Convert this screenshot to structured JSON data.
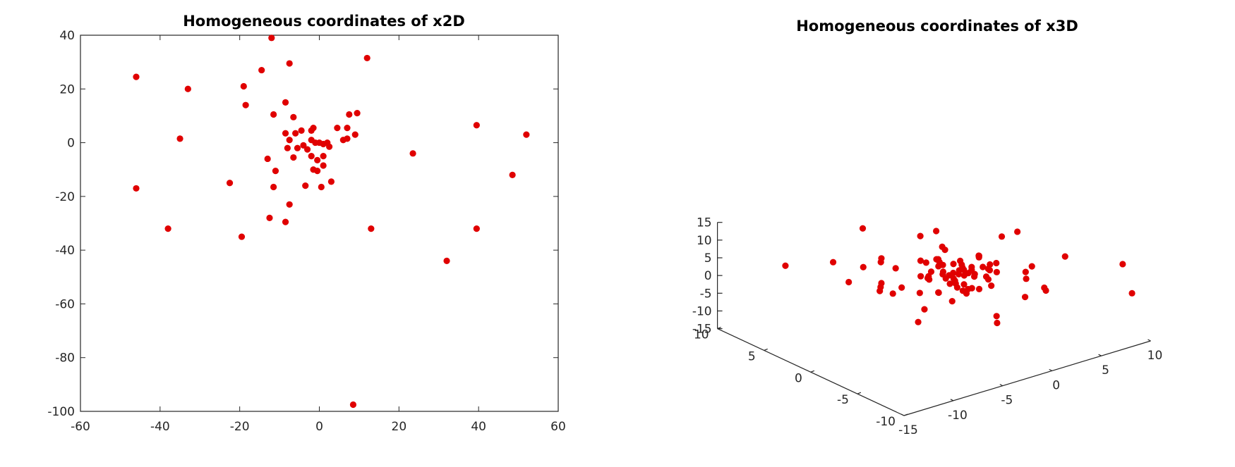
{
  "colors": {
    "marker": "#e00000",
    "axis": "#262626",
    "background": "#ffffff"
  },
  "chart_data": [
    {
      "type": "scatter",
      "title": "Homogeneous coordinates of x2D",
      "xlim": [
        -60,
        60
      ],
      "ylim": [
        -100,
        40
      ],
      "xticks": [
        -60,
        -40,
        -20,
        0,
        20,
        40,
        60
      ],
      "yticks": [
        -100,
        -80,
        -60,
        -40,
        -20,
        0,
        20,
        40
      ],
      "grid": false,
      "series": [
        {
          "marker_color": "#e00000",
          "points": [
            [
              -46,
              24.5
            ],
            [
              -33,
              20
            ],
            [
              -35,
              1.5
            ],
            [
              -46,
              -17
            ],
            [
              -38,
              -32
            ],
            [
              -12,
              39
            ],
            [
              -7.5,
              29.5
            ],
            [
              -14.5,
              27
            ],
            [
              -19,
              21
            ],
            [
              -18.5,
              14
            ],
            [
              -8.5,
              15
            ],
            [
              -11.5,
              10.5
            ],
            [
              -6.5,
              9.5
            ],
            [
              -8.5,
              3.5
            ],
            [
              -7.5,
              1
            ],
            [
              -8,
              -2
            ],
            [
              -6,
              3.5
            ],
            [
              -4.5,
              4.5
            ],
            [
              -2,
              4.5
            ],
            [
              -1.5,
              5.5
            ],
            [
              -4,
              -1
            ],
            [
              -2,
              1
            ],
            [
              -1,
              0
            ],
            [
              0,
              0
            ],
            [
              1,
              -0.5
            ],
            [
              2,
              0
            ],
            [
              2.5,
              -1.5
            ],
            [
              -3,
              -2.5
            ],
            [
              -5.5,
              -2
            ],
            [
              -6.5,
              -5.5
            ],
            [
              -2,
              -5
            ],
            [
              -0.5,
              -6.5
            ],
            [
              1,
              -5
            ],
            [
              1,
              -8.5
            ],
            [
              -1.5,
              -10
            ],
            [
              -0.5,
              -10.5
            ],
            [
              -3.5,
              -16
            ],
            [
              0.5,
              -16.5
            ],
            [
              3,
              -14.5
            ],
            [
              -11,
              -10.5
            ],
            [
              -13,
              -6
            ],
            [
              -11.5,
              -16.5
            ],
            [
              -22.5,
              -15
            ],
            [
              -7.5,
              -23
            ],
            [
              -12.5,
              -28
            ],
            [
              -8.5,
              -29.5
            ],
            [
              -19.5,
              -35
            ],
            [
              4.5,
              5.5
            ],
            [
              7,
              5.5
            ],
            [
              7.5,
              10.5
            ],
            [
              9.5,
              11
            ],
            [
              6,
              1
            ],
            [
              7,
              1.5
            ],
            [
              9,
              3
            ],
            [
              12,
              31.5
            ],
            [
              23.5,
              -4
            ],
            [
              13,
              -32
            ],
            [
              39.5,
              6.5
            ],
            [
              52,
              3
            ],
            [
              48.5,
              -12
            ],
            [
              39.5,
              -32
            ],
            [
              32,
              -44
            ],
            [
              8.5,
              -97.5
            ]
          ]
        }
      ]
    },
    {
      "type": "scatter",
      "title": "Homogeneous coordinates of x3D",
      "xlim": [
        -15,
        10
      ],
      "ylim": [
        -10,
        10
      ],
      "zlim": [
        -15,
        15
      ],
      "xticks": [
        -15,
        -10,
        -5,
        0,
        5,
        10
      ],
      "yticks": [
        -10,
        -5,
        0,
        5,
        10
      ],
      "zticks": [
        -15,
        -10,
        -5,
        0,
        5,
        10,
        15
      ],
      "grid": false,
      "series": [
        {
          "marker_color": "#e00000",
          "points": [
            [
              -3.5,
              -2,
              8
            ],
            [
              2,
              -2.5,
              12
            ],
            [
              -5,
              5,
              11
            ],
            [
              -2,
              2,
              10
            ],
            [
              0.5,
              -3.5,
              7
            ],
            [
              -6,
              2,
              6
            ],
            [
              5,
              -1,
              9
            ],
            [
              1.5,
              4,
              6
            ],
            [
              -8,
              5,
              4
            ],
            [
              7,
              -4,
              4
            ],
            [
              -4,
              6,
              -2
            ],
            [
              4,
              6,
              -3
            ],
            [
              -6,
              -2,
              -6
            ],
            [
              3,
              -6,
              1
            ],
            [
              -1,
              6,
              -12
            ],
            [
              2,
              -2,
              -13
            ],
            [
              -3,
              0.5,
              -8
            ],
            [
              1,
              -3,
              -9
            ],
            [
              6,
              -3,
              -6
            ],
            [
              -8,
              0,
              2
            ],
            [
              6,
              3,
              -6
            ],
            [
              10,
              -7,
              3
            ],
            [
              10,
              -8,
              -4
            ],
            [
              -10,
              8,
              1
            ],
            [
              -4.5,
              2,
              3
            ],
            [
              -4,
              -1,
              4
            ],
            [
              -5,
              6.5,
              -6
            ],
            [
              -2,
              -3.5,
              8
            ],
            [
              -1.5,
              -3,
              1
            ],
            [
              3,
              1,
              1
            ],
            [
              2,
              4.5,
              -3
            ],
            [
              -5,
              3,
              -2
            ],
            [
              -3.5,
              -3,
              -1
            ],
            [
              0.5,
              2,
              4
            ],
            [
              -3,
              -4,
              2
            ],
            [
              3,
              -4,
              3
            ],
            [
              -3,
              1,
              -4
            ],
            [
              3,
              0,
              -4
            ],
            [
              -1,
              1,
              3
            ],
            [
              0,
              -1,
              -3
            ],
            [
              4,
              -3,
              -1
            ],
            [
              -5,
              3,
              5
            ],
            [
              6,
              -1.5,
              -1
            ],
            [
              -6.5,
              1.5,
              0
            ],
            [
              -2,
              4,
              -7
            ],
            [
              1,
              2,
              -6
            ],
            [
              -3,
              -1,
              6
            ],
            [
              2,
              -5,
              -2
            ],
            [
              -1.5,
              2.5,
              2
            ],
            [
              1.5,
              -1,
              2
            ],
            [
              -1,
              -1.5,
              -2
            ],
            [
              1,
              1,
              -1
            ],
            [
              0,
              0,
              0
            ],
            [
              0.5,
              -0.5,
              0.5
            ],
            [
              -0.5,
              0.5,
              -0.5
            ],
            [
              0.8,
              0.3,
              0.2
            ],
            [
              -0.8,
              -0.3,
              -0.2
            ],
            [
              0.2,
              0.8,
              -0.8
            ],
            [
              -0.2,
              -0.8,
              0.8
            ],
            [
              1.2,
              -0.4,
              -1.2
            ],
            [
              -1.2,
              0.4,
              1.2
            ],
            [
              0.6,
              1.2,
              0.9
            ],
            [
              -0.6,
              -1.2,
              -0.9
            ],
            [
              1.5,
              0.2,
              -0.3
            ],
            [
              -1.5,
              -0.2,
              0.3
            ],
            [
              0.3,
              -1.4,
              1.5
            ],
            [
              -0.3,
              1.4,
              -1.5
            ],
            [
              1,
              0.9,
              1.8
            ],
            [
              -1,
              -0.9,
              -1.8
            ],
            [
              0.4,
              0.1,
              2.2
            ],
            [
              -0.4,
              -0.1,
              -2.2
            ],
            [
              2.2,
              -1,
              0.5
            ],
            [
              -2.2,
              1,
              -0.5
            ],
            [
              1.8,
              1.5,
              -1.5
            ],
            [
              -1.8,
              -1.5,
              1.5
            ],
            [
              0.9,
              -2,
              1
            ],
            [
              -0.9,
              2,
              -1
            ],
            [
              2.5,
              0.5,
              2.5
            ],
            [
              -2.5,
              -0.5,
              -2.5
            ],
            [
              1.6,
              -1.8,
              -2.4
            ],
            [
              -1.6,
              1.8,
              2.4
            ],
            [
              2.8,
              -0.2,
              -0.6
            ],
            [
              -2.8,
              0.2,
              0.6
            ],
            [
              0.1,
              2.3,
              1.3
            ],
            [
              -0.1,
              -2.3,
              -1.3
            ],
            [
              3.2,
              1.2,
              1
            ],
            [
              -3.2,
              -1.2,
              -1
            ],
            [
              1.3,
              -2.7,
              2.8
            ],
            [
              -1.3,
              2.7,
              -2.8
            ]
          ]
        }
      ]
    }
  ]
}
